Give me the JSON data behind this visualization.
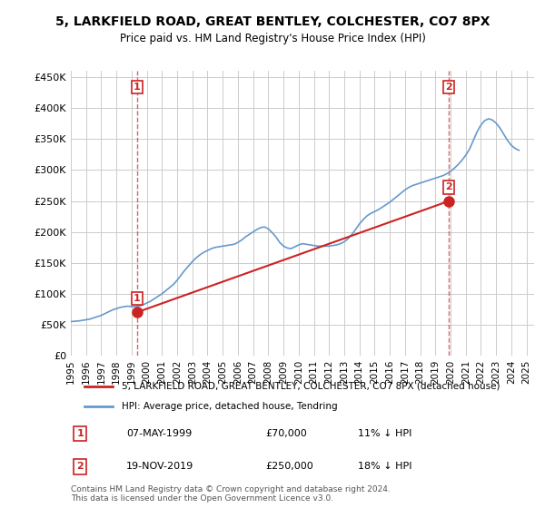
{
  "title": "5, LARKFIELD ROAD, GREAT BENTLEY, COLCHESTER, CO7 8PX",
  "subtitle": "Price paid vs. HM Land Registry's House Price Index (HPI)",
  "ylabel_ticks": [
    "£0",
    "£50K",
    "£100K",
    "£150K",
    "£200K",
    "£250K",
    "£300K",
    "£350K",
    "£400K",
    "£450K"
  ],
  "ytick_values": [
    0,
    50000,
    100000,
    150000,
    200000,
    250000,
    300000,
    350000,
    400000,
    450000
  ],
  "ylim": [
    0,
    460000
  ],
  "xlim_start": 1995.0,
  "xlim_end": 2025.5,
  "background_color": "#ffffff",
  "plot_bg_color": "#ffffff",
  "grid_color": "#cccccc",
  "hpi_line_color": "#6699cc",
  "property_line_color": "#cc2222",
  "purchase1_x": 1999.35,
  "purchase1_y": 70000,
  "purchase1_label": "1",
  "purchase2_x": 2019.9,
  "purchase2_y": 250000,
  "purchase2_label": "2",
  "legend_property": "5, LARKFIELD ROAD, GREAT BENTLEY, COLCHESTER, CO7 8PX (detached house)",
  "legend_hpi": "HPI: Average price, detached house, Tendring",
  "annotation1_date": "07-MAY-1999",
  "annotation1_price": "£70,000",
  "annotation1_hpi": "11% ↓ HPI",
  "annotation2_date": "19-NOV-2019",
  "annotation2_price": "£250,000",
  "annotation2_hpi": "18% ↓ HPI",
  "footer": "Contains HM Land Registry data © Crown copyright and database right 2024.\nThis data is licensed under the Open Government Licence v3.0.",
  "hpi_years": [
    1995,
    1995.25,
    1995.5,
    1995.75,
    1996,
    1996.25,
    1996.5,
    1996.75,
    1997,
    1997.25,
    1997.5,
    1997.75,
    1998,
    1998.25,
    1998.5,
    1998.75,
    1999,
    1999.25,
    1999.5,
    1999.75,
    2000,
    2000.25,
    2000.5,
    2000.75,
    2001,
    2001.25,
    2001.5,
    2001.75,
    2002,
    2002.25,
    2002.5,
    2002.75,
    2003,
    2003.25,
    2003.5,
    2003.75,
    2004,
    2004.25,
    2004.5,
    2004.75,
    2005,
    2005.25,
    2005.5,
    2005.75,
    2006,
    2006.25,
    2006.5,
    2006.75,
    2007,
    2007.25,
    2007.5,
    2007.75,
    2008,
    2008.25,
    2008.5,
    2008.75,
    2009,
    2009.25,
    2009.5,
    2009.75,
    2010,
    2010.25,
    2010.5,
    2010.75,
    2011,
    2011.25,
    2011.5,
    2011.75,
    2012,
    2012.25,
    2012.5,
    2012.75,
    2013,
    2013.25,
    2013.5,
    2013.75,
    2014,
    2014.25,
    2014.5,
    2014.75,
    2015,
    2015.25,
    2015.5,
    2015.75,
    2016,
    2016.25,
    2016.5,
    2016.75,
    2017,
    2017.25,
    2017.5,
    2017.75,
    2018,
    2018.25,
    2018.5,
    2018.75,
    2019,
    2019.25,
    2019.5,
    2019.75,
    2020,
    2020.25,
    2020.5,
    2020.75,
    2021,
    2021.25,
    2021.5,
    2021.75,
    2022,
    2022.25,
    2022.5,
    2022.75,
    2023,
    2023.25,
    2023.5,
    2023.75,
    2024,
    2024.25,
    2024.5
  ],
  "hpi_values": [
    55000,
    55500,
    56000,
    57000,
    58000,
    59000,
    61000,
    63000,
    65000,
    68000,
    71000,
    74000,
    76000,
    78000,
    79000,
    80000,
    79000,
    79500,
    80000,
    82000,
    85000,
    88000,
    92000,
    96000,
    100000,
    105000,
    110000,
    115000,
    122000,
    130000,
    138000,
    145000,
    152000,
    158000,
    163000,
    167000,
    170000,
    173000,
    175000,
    176000,
    177000,
    178000,
    179000,
    180000,
    183000,
    187000,
    192000,
    196000,
    200000,
    204000,
    207000,
    208000,
    205000,
    199000,
    192000,
    183000,
    177000,
    174000,
    173000,
    176000,
    179000,
    181000,
    180000,
    179000,
    178000,
    177000,
    177000,
    177000,
    177000,
    178000,
    179000,
    181000,
    184000,
    189000,
    196000,
    204000,
    213000,
    220000,
    226000,
    230000,
    233000,
    236000,
    240000,
    244000,
    248000,
    253000,
    258000,
    263000,
    268000,
    272000,
    275000,
    277000,
    279000,
    281000,
    283000,
    285000,
    287000,
    289000,
    291000,
    294000,
    298000,
    303000,
    309000,
    316000,
    324000,
    334000,
    348000,
    362000,
    373000,
    380000,
    383000,
    381000,
    376000,
    368000,
    358000,
    348000,
    340000,
    335000,
    332000
  ],
  "property_years": [
    1999.35,
    2019.9
  ],
  "property_values": [
    70000,
    250000
  ]
}
